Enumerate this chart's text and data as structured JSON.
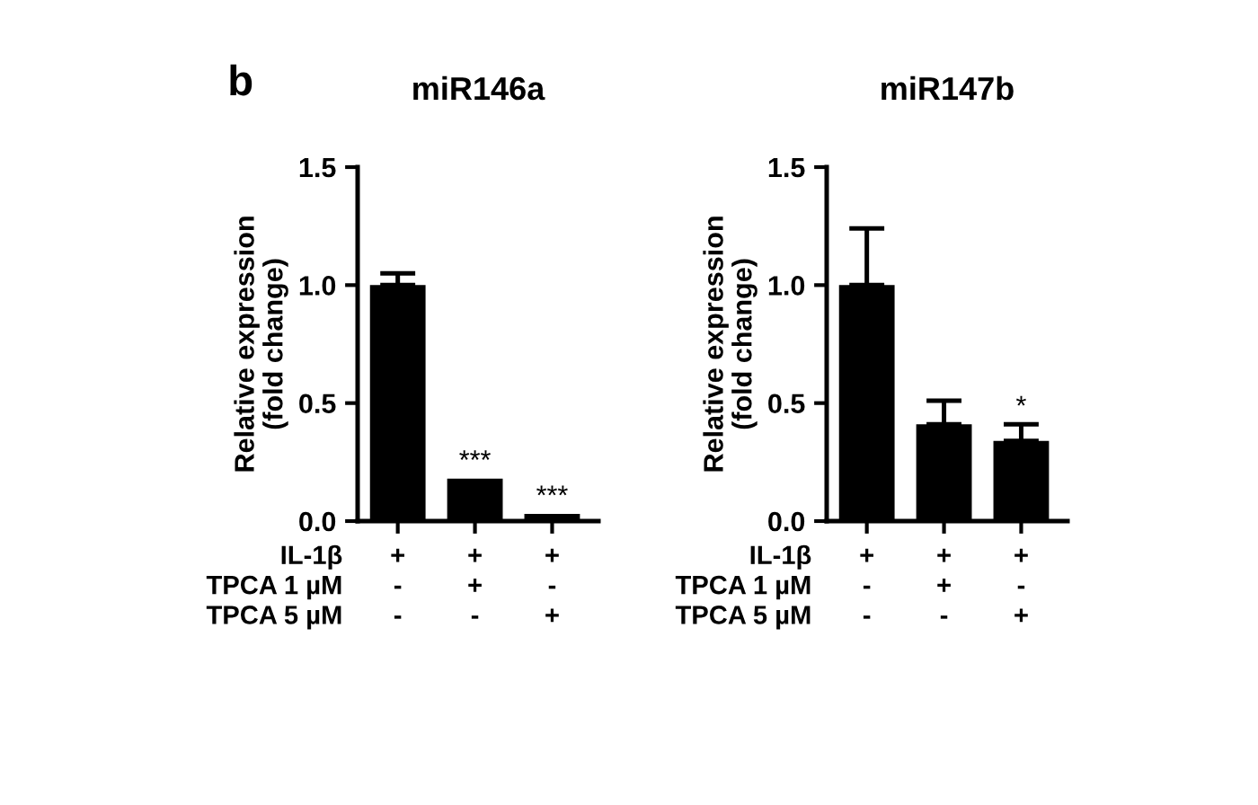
{
  "chart_data": [
    {
      "type": "bar",
      "title": "miR146a",
      "ylabel": "Relative expression\n(fold change)",
      "categories": [
        "+\n-\n-",
        "+\n+\n-",
        "+\n-\n+"
      ],
      "values": [
        1.0,
        0.18,
        0.03
      ],
      "errors": [
        [
          1.0,
          1.05
        ],
        null,
        null
      ],
      "color": "#000000",
      "ylim": [
        0,
        1.5
      ],
      "yticks": [
        {
          "value": 0,
          "label": "0.0"
        },
        {
          "value": 0.5,
          "label": "0.5"
        },
        {
          "value": 1.0,
          "label": "1.0"
        },
        {
          "value": 1.5,
          "label": "1.5"
        }
      ],
      "annotations": [
        "IL-1β",
        "TPCA 1 µM",
        "TPCA 5 µM",
        "b",
        {
          "text": "***",
          "x": "+\n+\n-",
          "y": 0.18
        },
        {
          "text": "***",
          "x": "+\n-\n+",
          "y": 0.03
        }
      ]
    },
    {
      "type": "bar",
      "title": "miR147b",
      "ylabel": "Relative expression\n(fold change)",
      "categories": [
        "+\n-\n-",
        "+\n+\n-",
        "+\n-\n+"
      ],
      "values": [
        1.0,
        0.41,
        0.34
      ],
      "errors": [
        [
          1.0,
          1.24
        ],
        [
          0.41,
          0.51
        ],
        [
          0.34,
          0.41
        ]
      ],
      "color": "#000000",
      "ylim": [
        0,
        1.5
      ],
      "yticks": [
        {
          "value": 0,
          "label": "0.0"
        },
        {
          "value": 0.5,
          "label": "0.5"
        },
        {
          "value": 1.0,
          "label": "1.0"
        },
        {
          "value": 1.5,
          "label": "1.5"
        }
      ],
      "annotations": [
        "IL-1β",
        "TPCA 1 µM",
        "TPCA 5 µM",
        {
          "text": "*",
          "x": "+\n-\n+",
          "y": 0.41
        }
      ]
    }
  ]
}
